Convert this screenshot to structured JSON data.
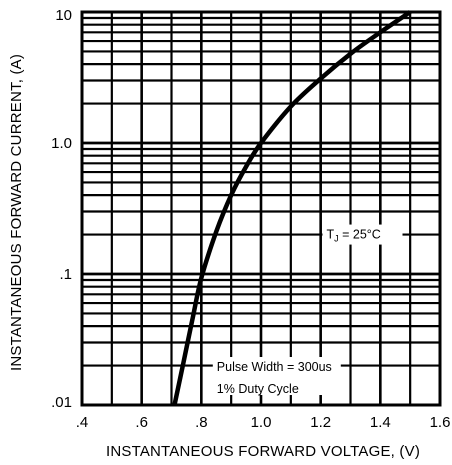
{
  "chart_data": {
    "type": "line",
    "x_scale": "linear",
    "y_scale": "log",
    "xlabel": "INSTANTANEOUS FORWARD VOLTAGE, (V)",
    "ylabel": "INSTANTANEOUS FORWARD CURRENT, (A)",
    "xlim": [
      0.4,
      1.6
    ],
    "ylim": [
      0.01,
      10
    ],
    "x_ticks": [
      ".4",
      ".6",
      ".8",
      "1.0",
      "1.2",
      "1.4",
      "1.6"
    ],
    "y_ticks": [
      "10",
      "1.0",
      ".1",
      ".01"
    ],
    "grid": true,
    "series": [
      {
        "x": [
          0.71,
          0.74,
          0.77,
          0.8,
          0.85,
          0.9,
          0.95,
          1.0,
          1.1,
          1.2,
          1.3,
          1.4,
          1.5
        ],
        "y": [
          0.01,
          0.021,
          0.045,
          0.093,
          0.21,
          0.4,
          0.66,
          1.0,
          1.9,
          3.1,
          4.8,
          7.0,
          10.0
        ]
      }
    ],
    "annotations": [
      {
        "text_main": "T",
        "text_sub": "J",
        "text_rest": " = 25°C",
        "x": 1.3,
        "y": 0.2
      },
      {
        "text": "Pulse Width = 300us",
        "x": 1.12,
        "y": 0.0195
      },
      {
        "text": "1% Duty Cycle",
        "x": 1.12,
        "y": 0.0142
      }
    ]
  }
}
